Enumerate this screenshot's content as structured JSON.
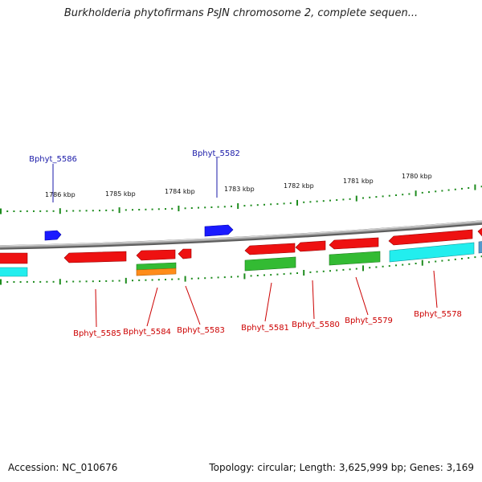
{
  "title": "Burkholderia phytofirmans PsJN chromosome 2, complete sequen...",
  "accession": "Accession: NC_010676",
  "summary": "Topology: circular; Length: 3,625,999 bp; Genes: 3,169",
  "colors": {
    "backbone": "#8c8c8c",
    "ticks": "#1e8c1e",
    "strand_plus_label": "#1a1aa8",
    "strand_minus_label": "#cc0000",
    "gene_blue": "#1a1aff",
    "gene_red": "#ee1111",
    "gene_green": "#33bb33",
    "gene_orange": "#ff8c1a",
    "gene_cyan": "#22eeee"
  },
  "kbp_labels": [
    "1786 kbp",
    "1785 kbp",
    "1784 kbp",
    "1783 kbp",
    "1782 kbp",
    "1781 kbp",
    "1780 kbp"
  ],
  "gene_labels_top": [
    "Bphyt_5586",
    "Bphyt_5582"
  ],
  "gene_labels_bottom": [
    "Bphyt_5585",
    "Bphyt_5584",
    "Bphyt_5583",
    "Bphyt_5581",
    "Bphyt_5580",
    "Bphyt_5579",
    "Bphyt_5578"
  ]
}
